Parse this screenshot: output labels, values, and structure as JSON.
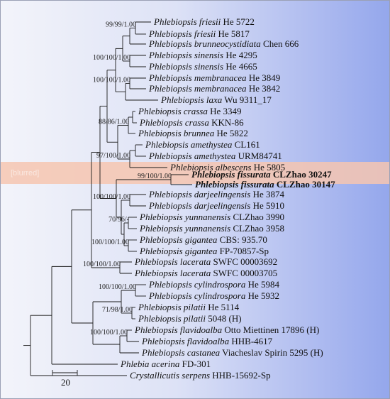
{
  "highlight_color": "#f6c6b0",
  "highlight_label": "[blurred]",
  "scale_label": "20",
  "taxa": [
    {
      "genus": "Phlebiopsis friesii",
      "voucher": "He 5722"
    },
    {
      "genus": "Phlebiopsis friesii",
      "voucher": "He 5817"
    },
    {
      "genus": "Phlebiopsis brunneocystidiata",
      "voucher": "Chen 666"
    },
    {
      "genus": "Phlebiopsis sinensis",
      "voucher": "He 4295"
    },
    {
      "genus": "Phlebiopsis sinensis",
      "voucher": "He 4665"
    },
    {
      "genus": "Phlebiopsis membranacea",
      "voucher": "He 3849"
    },
    {
      "genus": "Phlebiopsis membranacea",
      "voucher": "He 3842"
    },
    {
      "genus": "Phlebiopsis laxa",
      "voucher": "Wu 9311_17"
    },
    {
      "genus": "Phlebiopsis crassa",
      "voucher": "He 3349"
    },
    {
      "genus": "Phlebiopsis crassa",
      "voucher": "KKN-86"
    },
    {
      "genus": "Phlebiopsis brunnea",
      "voucher": "He 5822"
    },
    {
      "genus": "Phlebiopsis amethystea",
      "voucher": "CL161"
    },
    {
      "genus": "Phlebiopsis amethystea",
      "voucher": "URM84741"
    },
    {
      "genus": "Phlebiopsis albescens",
      "voucher": "He 5805"
    },
    {
      "genus": "Phlebiopsis fissurata",
      "voucher": "CLZhao 30247",
      "highlight": true
    },
    {
      "genus": "Phlebiopsis fissurata",
      "voucher": "CLZhao 30147",
      "highlight": true
    },
    {
      "genus": "Phlebiopsis darjeelingensis",
      "voucher": "He 3874"
    },
    {
      "genus": "Phlebiopsis darjeelingensis",
      "voucher": "He 5910"
    },
    {
      "genus": "Phlebiopsis yunnanensis",
      "voucher": "CLZhao 3990"
    },
    {
      "genus": "Phlebiopsis yunnanensis",
      "voucher": "CLZhao 3958"
    },
    {
      "genus": "Phlebiopsis gigantea",
      "voucher": "CBS: 935.70"
    },
    {
      "genus": "Phlebiopsis gigantea",
      "voucher": "FP-70857-Sp"
    },
    {
      "genus": "Phlebiopsis lacerata",
      "voucher": "SWFC 00003692"
    },
    {
      "genus": "Phlebiopsis lacerata",
      "voucher": "SWFC 00003705"
    },
    {
      "genus": "Phlebiopsis cylindrospora",
      "voucher": "He 5984"
    },
    {
      "genus": "Phlebiopsis cylindrospora",
      "voucher": "He 5932"
    },
    {
      "genus": "Phlebiopsis pilatii",
      "voucher": "He 5114"
    },
    {
      "genus": "Phlebiopsis pilatii",
      "voucher": "5048 (H)"
    },
    {
      "genus": "Phlebiopsis flavidoalba",
      "voucher": "Otto Miettinen 17896 (H)"
    },
    {
      "genus": "Phlebiopsis flavidoalba",
      "voucher": "HHB-4617"
    },
    {
      "genus": "Phlebiopsis castanea",
      "voucher": "Viacheslav Spirin 5295 (H)"
    },
    {
      "genus": "Phlebia acerina",
      "voucher": "FD-301"
    },
    {
      "genus": "Crystallicutis serpens",
      "voucher": "HHB-15692-Sp"
    }
  ],
  "support_labels": {
    "friesii": "99/99/1.00",
    "sinensis": "100/100/1.00",
    "membranacea": "100/100/1.00",
    "crassa_group": "88/86/1.00",
    "amethystea": "97/100/1.00",
    "fissurata": "99/100/1.00",
    "darjeelingensis": "100/100/1.00",
    "yunnanensis": "70/96/-",
    "gigantea": "100/100/1.00",
    "lacerata": "100/100/1.00",
    "cylindrospora": "100/100/1.00",
    "pilatii": "71/98/1.00",
    "flavidoalba": "100/100/1.00"
  }
}
